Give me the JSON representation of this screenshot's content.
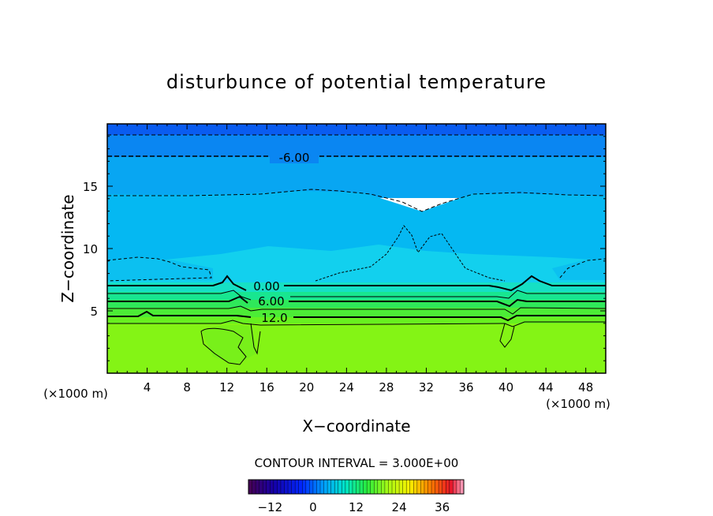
{
  "chart_data": {
    "type": "heatmap",
    "title": "disturbunce of potential temperature",
    "xlabel": "X−coordinate",
    "ylabel": "Z−coordinate",
    "x_unit": "(×1000 m)",
    "y_unit": "(×1000 m)",
    "xlim": [
      0,
      50
    ],
    "ylim": [
      0,
      20
    ],
    "x_ticks": [
      4,
      8,
      12,
      16,
      20,
      24,
      28,
      32,
      36,
      40,
      44,
      48
    ],
    "y_ticks": [
      5,
      10,
      15
    ],
    "contour_interval_text": "CONTOUR INTERVAL = 3.000E+00",
    "contour_labels": [
      "-6.00",
      "0.00",
      "6.00",
      "12.0"
    ],
    "colorbar": {
      "range": [
        -18,
        42
      ],
      "ticks": [
        "−12",
        "0",
        "12",
        "24",
        "36"
      ],
      "tick_values": [
        -12,
        0,
        12,
        24,
        36
      ]
    },
    "grid": false
  }
}
